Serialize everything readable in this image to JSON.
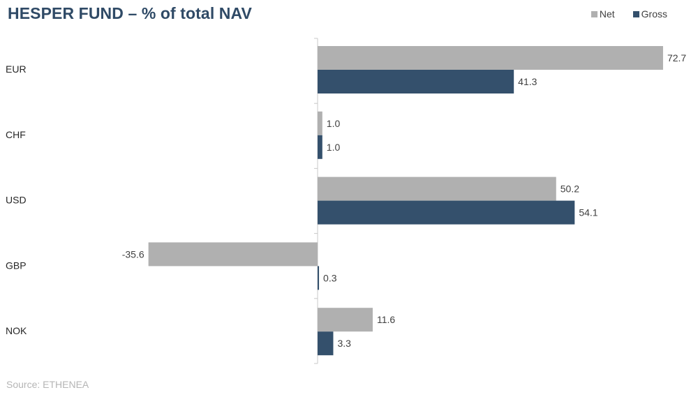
{
  "chart_data": {
    "type": "bar",
    "orientation": "horizontal",
    "title": "HESPER FUND – % of total NAV",
    "categories": [
      "EUR",
      "CHF",
      "USD",
      "GBP",
      "NOK"
    ],
    "series": [
      {
        "name": "Net",
        "color": "#b0b0b0",
        "values": [
          72.7,
          1.0,
          50.2,
          -35.6,
          11.6
        ]
      },
      {
        "name": "Gross",
        "color": "#34506c",
        "values": [
          41.3,
          1.0,
          54.1,
          0.3,
          3.3
        ]
      }
    ],
    "xlim": [
      -35.6,
      72.7
    ],
    "xlabel": "",
    "ylabel": "",
    "grid": false,
    "legend_position": "top-right",
    "source": "Source: ETHENEA"
  }
}
